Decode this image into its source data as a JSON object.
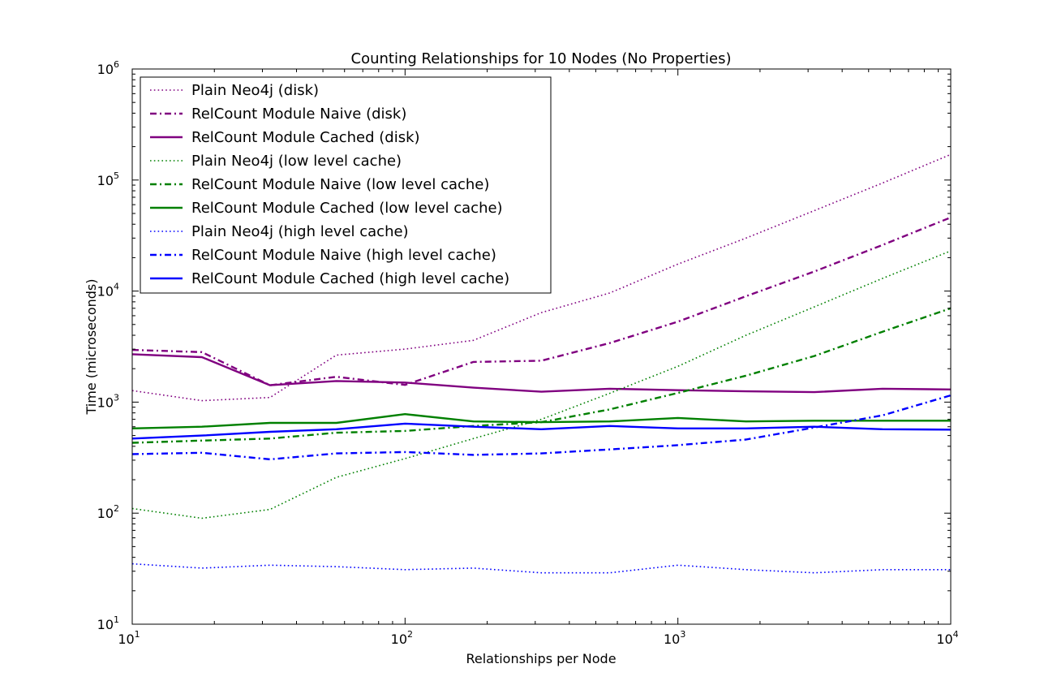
{
  "chart_data": {
    "type": "line",
    "title": "Counting Relationships for 10 Nodes (No Properties)",
    "xlabel": "Relationships per Node",
    "ylabel": "Time (microseconds)",
    "xscale": "log",
    "yscale": "log",
    "xlim": [
      10,
      10000
    ],
    "ylim": [
      10,
      1000000
    ],
    "grid": false,
    "legend_placement": "top-left",
    "x_ticks": [
      {
        "value": 10,
        "base": "10",
        "exp": "1"
      },
      {
        "value": 100,
        "base": "10",
        "exp": "2"
      },
      {
        "value": 1000,
        "base": "10",
        "exp": "3"
      },
      {
        "value": 10000,
        "base": "10",
        "exp": "4"
      }
    ],
    "y_ticks": [
      {
        "value": 10,
        "base": "10",
        "exp": "1"
      },
      {
        "value": 100,
        "base": "10",
        "exp": "2"
      },
      {
        "value": 1000,
        "base": "10",
        "exp": "3"
      },
      {
        "value": 10000,
        "base": "10",
        "exp": "4"
      },
      {
        "value": 100000,
        "base": "10",
        "exp": "5"
      },
      {
        "value": 1000000,
        "base": "10",
        "exp": "6"
      }
    ],
    "x": [
      10,
      18,
      32,
      56,
      100,
      178,
      316,
      562,
      1000,
      1778,
      3162,
      5623,
      10000
    ],
    "series": [
      {
        "name": "Plain Neo4j (disk)",
        "color": "#800080",
        "style": "dotted",
        "values": [
          1270,
          1030,
          1100,
          2650,
          3000,
          3600,
          6400,
          9600,
          17500,
          30000,
          53000,
          94000,
          170000
        ]
      },
      {
        "name": "RelCount Module Naive (disk)",
        "color": "#800080",
        "style": "dashdot",
        "values": [
          2950,
          2820,
          1420,
          1690,
          1430,
          2300,
          2360,
          3400,
          5300,
          9000,
          15000,
          26000,
          46000
        ]
      },
      {
        "name": "RelCount Module Cached (disk)",
        "color": "#800080",
        "style": "solid",
        "values": [
          2700,
          2540,
          1420,
          1550,
          1500,
          1350,
          1240,
          1320,
          1280,
          1250,
          1230,
          1320,
          1300
        ]
      },
      {
        "name": "Plain Neo4j (low level cache)",
        "color": "#008000",
        "style": "dotted",
        "values": [
          110,
          90,
          108,
          210,
          310,
          470,
          700,
          1200,
          2100,
          4000,
          7200,
          13000,
          23000
        ]
      },
      {
        "name": "RelCount Module Naive (low level cache)",
        "color": "#008000",
        "style": "dashdot",
        "values": [
          430,
          450,
          470,
          530,
          550,
          610,
          660,
          860,
          1210,
          1730,
          2600,
          4300,
          7000
        ]
      },
      {
        "name": "RelCount Module Cached (low level cache)",
        "color": "#008000",
        "style": "solid",
        "values": [
          580,
          600,
          650,
          650,
          780,
          670,
          660,
          670,
          720,
          670,
          680,
          680,
          680
        ]
      },
      {
        "name": "Plain Neo4j (high level cache)",
        "color": "#0000ff",
        "style": "dotted",
        "values": [
          35,
          32,
          34,
          33,
          31,
          32,
          29,
          29,
          34,
          31,
          29,
          31,
          31
        ]
      },
      {
        "name": "RelCount Module Naive (high level cache)",
        "color": "#0000ff",
        "style": "dashdot",
        "values": [
          340,
          350,
          305,
          345,
          355,
          335,
          345,
          375,
          410,
          460,
          590,
          760,
          1150
        ]
      },
      {
        "name": "RelCount Module Cached (high level cache)",
        "color": "#0000ff",
        "style": "solid",
        "values": [
          470,
          500,
          540,
          570,
          640,
          600,
          570,
          610,
          580,
          580,
          600,
          570,
          565
        ]
      }
    ]
  }
}
